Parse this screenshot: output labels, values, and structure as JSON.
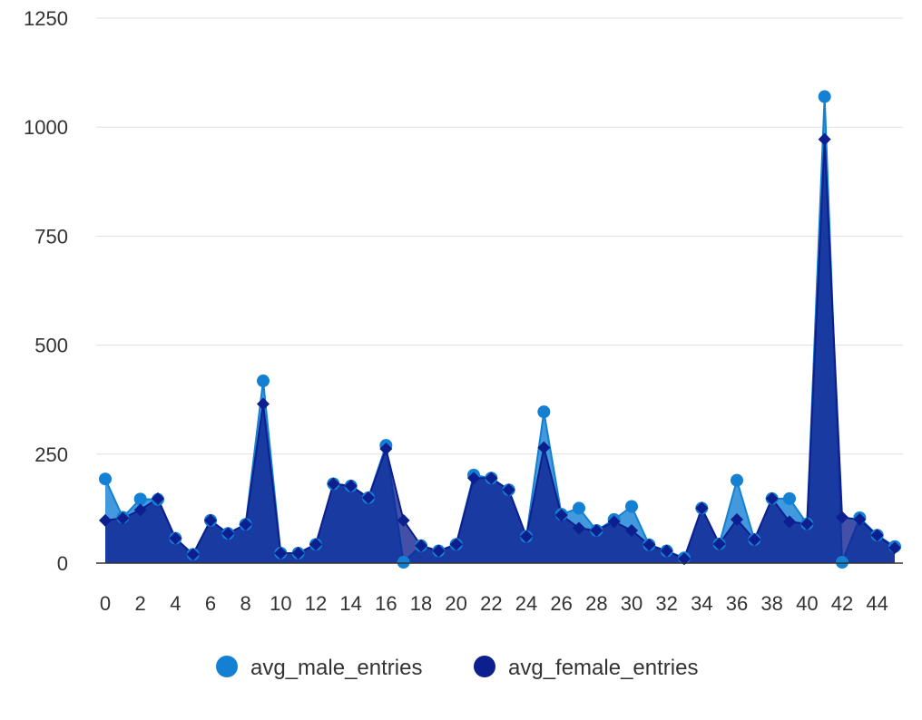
{
  "chart_data": {
    "type": "area",
    "x": [
      0,
      1,
      2,
      3,
      4,
      5,
      6,
      7,
      8,
      9,
      10,
      11,
      12,
      13,
      14,
      15,
      16,
      17,
      18,
      19,
      20,
      21,
      22,
      23,
      24,
      25,
      26,
      27,
      28,
      29,
      30,
      31,
      32,
      33,
      34,
      35,
      36,
      37,
      38,
      39,
      40,
      41,
      42,
      43,
      44,
      45
    ],
    "x_tick_labels": [
      "0",
      "2",
      "4",
      "6",
      "8",
      "10",
      "12",
      "14",
      "16",
      "18",
      "20",
      "22",
      "24",
      "26",
      "28",
      "30",
      "32",
      "34",
      "36",
      "38",
      "40",
      "42",
      "44"
    ],
    "y_tick_labels": [
      "0",
      "250",
      "500",
      "750",
      "1000",
      "1250"
    ],
    "ylim": [
      0,
      1250
    ],
    "grid": true,
    "legend_position": "bottom-center",
    "series": [
      {
        "name": "avg_male_entries",
        "color": "#1380D4",
        "marker": "circle",
        "values": [
          193,
          105,
          147,
          146,
          57,
          20,
          98,
          68,
          89,
          418,
          23,
          23,
          43,
          182,
          177,
          150,
          270,
          2,
          40,
          28,
          43,
          202,
          195,
          168,
          61,
          347,
          112,
          126,
          75,
          100,
          130,
          42,
          28,
          12,
          126,
          44,
          190,
          54,
          148,
          148,
          90,
          1070,
          2,
          104,
          64,
          38
        ]
      },
      {
        "name": "avg_female_entries",
        "color": "#0D1F8F",
        "marker": "diamond",
        "values": [
          98,
          103,
          122,
          148,
          57,
          20,
          98,
          68,
          89,
          365,
          23,
          23,
          43,
          182,
          177,
          150,
          262,
          98,
          40,
          28,
          43,
          195,
          195,
          168,
          61,
          265,
          110,
          80,
          75,
          95,
          75,
          42,
          28,
          10,
          126,
          44,
          100,
          54,
          148,
          95,
          90,
          972,
          105,
          100,
          64,
          35
        ]
      }
    ]
  }
}
